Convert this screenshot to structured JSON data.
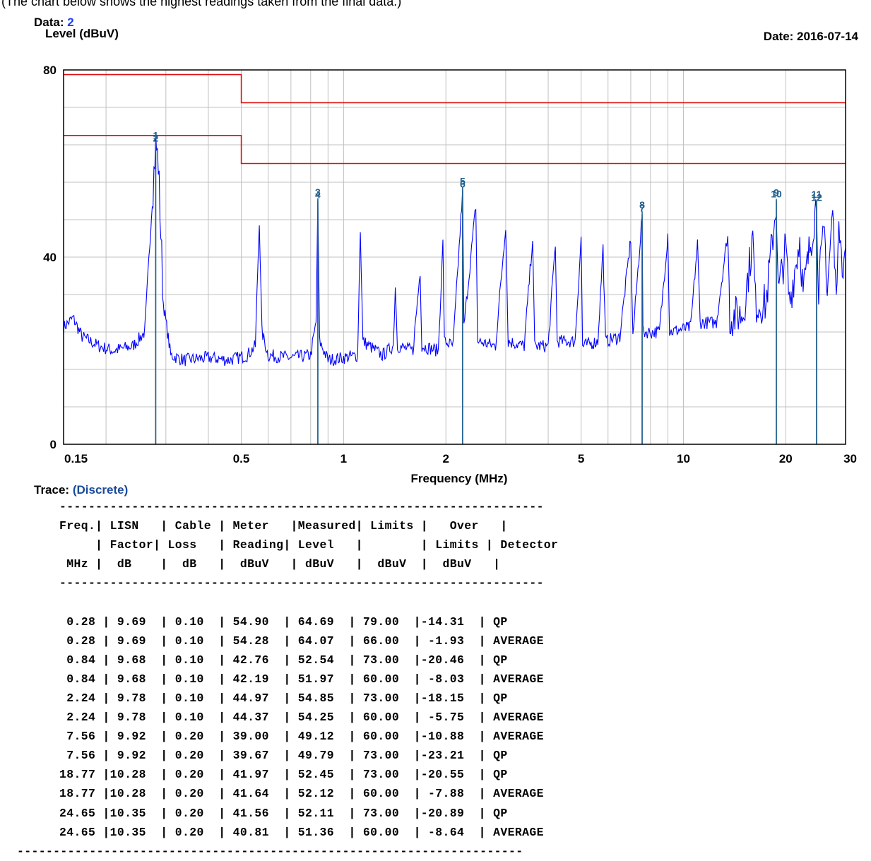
{
  "caption": "(The chart below shows the highest readings taken from the final data.)",
  "header": {
    "data_label": "Data:",
    "data_value": "2",
    "y_axis_label": "Level (dBuV)",
    "date_text": "Date: 2016-07-14"
  },
  "trace": {
    "label": "Trace:",
    "value": "(Discrete)"
  },
  "colors": {
    "trace": "#0000ff",
    "limits": "#e01010",
    "markers": "#1f5f8f",
    "grid": "#c0c0c0"
  },
  "chart_data": {
    "type": "line",
    "xlabel": "Frequency (MHz)",
    "ylabel": "Level (dBuV)",
    "x_scale": "log",
    "xlim": [
      0.15,
      30
    ],
    "ylim": [
      0,
      80
    ],
    "x_ticks": [
      "0.15",
      "0.5",
      "1",
      "2",
      "5",
      "10",
      "20",
      "30"
    ],
    "y_ticks": [
      "0",
      "40",
      "80"
    ],
    "grid": true,
    "limit_lines": [
      {
        "name": "QP",
        "points": [
          [
            0.15,
            79
          ],
          [
            0.5,
            79
          ],
          [
            0.5,
            73
          ],
          [
            30,
            73
          ]
        ]
      },
      {
        "name": "AVERAGE",
        "points": [
          [
            0.15,
            66
          ],
          [
            0.5,
            66
          ],
          [
            0.5,
            60
          ],
          [
            30,
            60
          ]
        ]
      }
    ],
    "markers": [
      {
        "id": "1",
        "freq": 0.28,
        "level": 64.69
      },
      {
        "id": "2",
        "freq": 0.28,
        "level": 64.07
      },
      {
        "id": "3",
        "freq": 0.84,
        "level": 52.54
      },
      {
        "id": "4",
        "freq": 0.84,
        "level": 51.97
      },
      {
        "id": "5",
        "freq": 2.24,
        "level": 54.85
      },
      {
        "id": "6",
        "freq": 2.24,
        "level": 54.25
      },
      {
        "id": "7",
        "freq": 7.56,
        "level": 49.12
      },
      {
        "id": "8",
        "freq": 7.56,
        "level": 49.79
      },
      {
        "id": "9",
        "freq": 18.77,
        "level": 52.45
      },
      {
        "id": "10",
        "freq": 18.77,
        "level": 52.12
      },
      {
        "id": "11",
        "freq": 24.65,
        "level": 52.11
      },
      {
        "id": "12",
        "freq": 24.65,
        "level": 51.36
      }
    ],
    "trace_points": [
      [
        0.15,
        25
      ],
      [
        0.16,
        27
      ],
      [
        0.17,
        23
      ],
      [
        0.19,
        21
      ],
      [
        0.21,
        20
      ],
      [
        0.24,
        21
      ],
      [
        0.26,
        24
      ],
      [
        0.275,
        55
      ],
      [
        0.28,
        64.5
      ],
      [
        0.285,
        60
      ],
      [
        0.295,
        30
      ],
      [
        0.31,
        19
      ],
      [
        0.34,
        18
      ],
      [
        0.4,
        18.5
      ],
      [
        0.46,
        18
      ],
      [
        0.52,
        19
      ],
      [
        0.55,
        21
      ],
      [
        0.565,
        48
      ],
      [
        0.575,
        24
      ],
      [
        0.6,
        19
      ],
      [
        0.7,
        18.5
      ],
      [
        0.8,
        19
      ],
      [
        0.83,
        26
      ],
      [
        0.84,
        51.5
      ],
      [
        0.85,
        22
      ],
      [
        0.9,
        18
      ],
      [
        1.0,
        18.5
      ],
      [
        1.1,
        19
      ],
      [
        1.12,
        46
      ],
      [
        1.14,
        22
      ],
      [
        1.3,
        19
      ],
      [
        1.4,
        21
      ],
      [
        1.42,
        34
      ],
      [
        1.44,
        21
      ],
      [
        1.6,
        20
      ],
      [
        1.68,
        37
      ],
      [
        1.7,
        21
      ],
      [
        1.9,
        20
      ],
      [
        1.96,
        43
      ],
      [
        1.98,
        22
      ],
      [
        2.1,
        21
      ],
      [
        2.24,
        54
      ],
      [
        2.26,
        25
      ],
      [
        2.45,
        51
      ],
      [
        2.48,
        22
      ],
      [
        2.8,
        21
      ],
      [
        3.0,
        47
      ],
      [
        3.05,
        22
      ],
      [
        3.4,
        21
      ],
      [
        3.6,
        44
      ],
      [
        3.65,
        21
      ],
      [
        4.0,
        21
      ],
      [
        4.2,
        43
      ],
      [
        4.25,
        22
      ],
      [
        4.8,
        22
      ],
      [
        5.0,
        44
      ],
      [
        5.05,
        21
      ],
      [
        5.6,
        22
      ],
      [
        5.8,
        42
      ],
      [
        5.9,
        22
      ],
      [
        6.5,
        23
      ],
      [
        7.0,
        44
      ],
      [
        7.1,
        23
      ],
      [
        7.56,
        49
      ],
      [
        7.6,
        24
      ],
      [
        8.5,
        24
      ],
      [
        9.0,
        45
      ],
      [
        9.1,
        24
      ],
      [
        10.5,
        25
      ],
      [
        11.0,
        43
      ],
      [
        11.2,
        26
      ],
      [
        12.5,
        26
      ],
      [
        13.5,
        45
      ],
      [
        13.7,
        27
      ],
      [
        15.0,
        28
      ],
      [
        16.0,
        44
      ],
      [
        16.3,
        30
      ],
      [
        17.5,
        30
      ],
      [
        18.77,
        52
      ],
      [
        19.0,
        32
      ],
      [
        20.0,
        42
      ],
      [
        20.5,
        30
      ],
      [
        22.0,
        44
      ],
      [
        22.5,
        32
      ],
      [
        24.65,
        52
      ],
      [
        25.0,
        34
      ],
      [
        26.0,
        46
      ],
      [
        26.5,
        33
      ],
      [
        27.5,
        50
      ],
      [
        28.0,
        34
      ],
      [
        29.0,
        48
      ],
      [
        29.5,
        36
      ],
      [
        30.0,
        42
      ]
    ]
  },
  "table": {
    "top_rule": "-------------------------------------------------------------------",
    "header_lines": [
      "Freq.| LISN   | Cable | Meter   |Measured| Limits |   Over   |",
      "     | Factor| Loss   | Reading| Level   |        | Limits | Detector",
      " MHz |  dB    |  dB   |  dBuV   | dBuV   |  dBuV  |  dBuV   |"
    ],
    "header_rule": "-------------------------------------------------------------------",
    "rows": [
      [
        "0.28",
        "9.69",
        "0.10",
        "54.90",
        "64.69",
        "79.00",
        "-14.31",
        "QP"
      ],
      [
        "0.28",
        "9.69",
        "0.10",
        "54.28",
        "64.07",
        "66.00",
        "-1.93",
        "AVERAGE"
      ],
      [
        "0.84",
        "9.68",
        "0.10",
        "42.76",
        "52.54",
        "73.00",
        "-20.46",
        "QP"
      ],
      [
        "0.84",
        "9.68",
        "0.10",
        "42.19",
        "51.97",
        "60.00",
        "-8.03",
        "AVERAGE"
      ],
      [
        "2.24",
        "9.78",
        "0.10",
        "44.97",
        "54.85",
        "73.00",
        "-18.15",
        "QP"
      ],
      [
        "2.24",
        "9.78",
        "0.10",
        "44.37",
        "54.25",
        "60.00",
        "-5.75",
        "AVERAGE"
      ],
      [
        "7.56",
        "9.92",
        "0.20",
        "39.00",
        "49.12",
        "60.00",
        "-10.88",
        "AVERAGE"
      ],
      [
        "7.56",
        "9.92",
        "0.20",
        "39.67",
        "49.79",
        "73.00",
        "-23.21",
        "QP"
      ],
      [
        "18.77",
        "10.28",
        "0.20",
        "41.97",
        "52.45",
        "73.00",
        "-20.55",
        "QP"
      ],
      [
        "18.77",
        "10.28",
        "0.20",
        "41.64",
        "52.12",
        "60.00",
        "-7.88",
        "AVERAGE"
      ],
      [
        "24.65",
        "10.35",
        "0.20",
        "41.56",
        "52.11",
        "73.00",
        "-20.89",
        "QP"
      ],
      [
        "24.65",
        "10.35",
        "0.20",
        "40.81",
        "51.36",
        "60.00",
        "-8.64",
        "AVERAGE"
      ]
    ],
    "bottom_rule": "----------------------------------------------------------------------"
  }
}
